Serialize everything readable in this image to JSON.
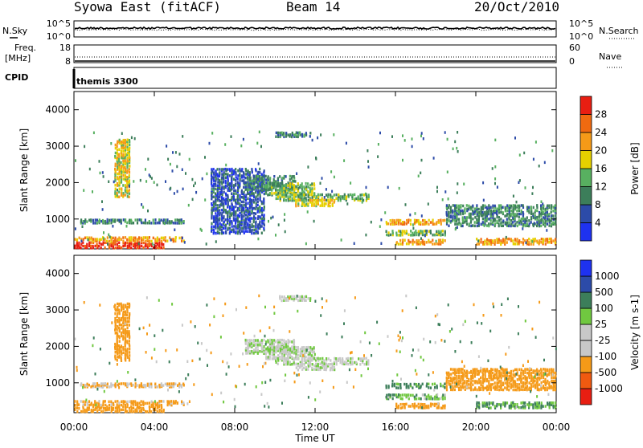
{
  "header": {
    "station": "Syowa East (fitACF)",
    "beam": "Beam 14",
    "date": "20/Oct/2010"
  },
  "strips": {
    "nsky_label": "N.Sky",
    "nsearch_label": "N.Search",
    "noise_ticks_left": [
      "10^5",
      "10^0"
    ],
    "noise_ticks_right": [
      "10^5",
      "10^0"
    ],
    "freq_label_1": "Freq.",
    "freq_label_2": "[MHz]",
    "freq_ticks": [
      "18",
      "8"
    ],
    "nave_label": "Nave",
    "nave_ticks": [
      "60",
      "0"
    ],
    "cpid_label": "CPID",
    "cpid_value": "themis 3300"
  },
  "time_axis": {
    "label": "Time UT",
    "ticks": [
      "00:00",
      "04:00",
      "08:00",
      "12:00",
      "16:00",
      "20:00",
      "00:00"
    ]
  },
  "colors": {
    "power": [
      "#1E32F0",
      "#2C4BA8",
      "#3C7E5A",
      "#58B060",
      "#E6D000",
      "#F59A18",
      "#F06A10",
      "#E81E12"
    ],
    "velocity": [
      "#E81E12",
      "#F05A10",
      "#F59A18",
      "#C8C8C8",
      "#C8C8C8",
      "#70C840",
      "#3C7E5A",
      "#2C4BA8",
      "#1E32F0"
    ],
    "ground_scatter": "#C8C8C8"
  },
  "chart_data": [
    {
      "type": "heatmap",
      "panel": "power",
      "xlabel": "Time UT",
      "ylabel": "Slant Range [km]",
      "xlim": [
        0,
        24
      ],
      "ylim": [
        180,
        4500
      ],
      "yticks": [
        1000,
        2000,
        3000,
        4000
      ],
      "colorbar": {
        "label": "Power [dB]",
        "ticks": [
          4,
          8,
          12,
          16,
          20,
          24,
          28
        ],
        "range": [
          0,
          32
        ]
      },
      "echo_regions": [
        {
          "t": [
            0.0,
            4.5
          ],
          "r": [
            200,
            380
          ],
          "level": 7
        },
        {
          "t": [
            0.0,
            5.5
          ],
          "r": [
            380,
            520
          ],
          "level": 5
        },
        {
          "t": [
            0.3,
            5.5
          ],
          "r": [
            880,
            1000
          ],
          "level": 2
        },
        {
          "t": [
            2.0,
            2.8
          ],
          "r": [
            1600,
            3200
          ],
          "level": 4
        },
        {
          "t": [
            6.8,
            9.5
          ],
          "r": [
            600,
            2400
          ],
          "level": 1
        },
        {
          "t": [
            8.5,
            11.0
          ],
          "r": [
            1800,
            2200
          ],
          "level": 2
        },
        {
          "t": [
            9.5,
            12.0
          ],
          "r": [
            1650,
            2000
          ],
          "level": 3
        },
        {
          "t": [
            10.0,
            14.7
          ],
          "r": [
            1500,
            1700
          ],
          "level": 3
        },
        {
          "t": [
            11.0,
            13.0
          ],
          "r": [
            1350,
            1550
          ],
          "level": 4
        },
        {
          "t": [
            10.0,
            11.8
          ],
          "r": [
            3250,
            3400
          ],
          "level": 2
        },
        {
          "t": [
            15.5,
            18.5
          ],
          "r": [
            850,
            1000
          ],
          "level": 5
        },
        {
          "t": [
            15.5,
            18.5
          ],
          "r": [
            550,
            700
          ],
          "level": 3
        },
        {
          "t": [
            16.0,
            18.5
          ],
          "r": [
            300,
            450
          ],
          "level": 5
        },
        {
          "t": [
            18.5,
            24.0
          ],
          "r": [
            800,
            1400
          ],
          "level": 2
        },
        {
          "t": [
            20.0,
            24.0
          ],
          "r": [
            300,
            480
          ],
          "level": 5
        }
      ]
    },
    {
      "type": "heatmap",
      "panel": "velocity",
      "xlabel": "Time UT",
      "ylabel": "Slant Range [km]",
      "xlim": [
        0,
        24
      ],
      "ylim": [
        180,
        4500
      ],
      "yticks": [
        1000,
        2000,
        3000,
        4000
      ],
      "colorbar": {
        "label": "Velocity [m s-1]",
        "ticks": [
          -1000,
          -500,
          -100,
          -25,
          25,
          100,
          500,
          1000
        ]
      },
      "echo_regions": [
        {
          "t": [
            0.0,
            4.5
          ],
          "r": [
            200,
            380
          ],
          "v": -300
        },
        {
          "t": [
            0.0,
            5.5
          ],
          "r": [
            380,
            520
          ],
          "v": -150
        },
        {
          "t": [
            0.3,
            5.5
          ],
          "r": [
            880,
            1000
          ],
          "v": -100
        },
        {
          "t": [
            2.0,
            2.8
          ],
          "r": [
            1600,
            3200
          ],
          "v": -200
        },
        {
          "t": [
            8.5,
            11.0
          ],
          "r": [
            1800,
            2200
          ],
          "v": 0
        },
        {
          "t": [
            9.5,
            12.0
          ],
          "r": [
            1650,
            2000
          ],
          "v": 0
        },
        {
          "t": [
            10.0,
            14.7
          ],
          "r": [
            1500,
            1700
          ],
          "v": 0
        },
        {
          "t": [
            11.0,
            13.0
          ],
          "r": [
            1350,
            1550
          ],
          "v": 0
        },
        {
          "t": [
            10.0,
            11.8
          ],
          "r": [
            3250,
            3400
          ],
          "v": 0
        },
        {
          "t": [
            15.5,
            18.5
          ],
          "r": [
            850,
            1000
          ],
          "v": 150
        },
        {
          "t": [
            15.5,
            18.5
          ],
          "r": [
            550,
            700
          ],
          "v": 80
        },
        {
          "t": [
            16.0,
            18.5
          ],
          "r": [
            300,
            450
          ],
          "v": -200
        },
        {
          "t": [
            18.5,
            24.0
          ],
          "r": [
            800,
            1400
          ],
          "v": -200
        },
        {
          "t": [
            20.0,
            24.0
          ],
          "r": [
            300,
            480
          ],
          "v": 100
        }
      ]
    }
  ]
}
